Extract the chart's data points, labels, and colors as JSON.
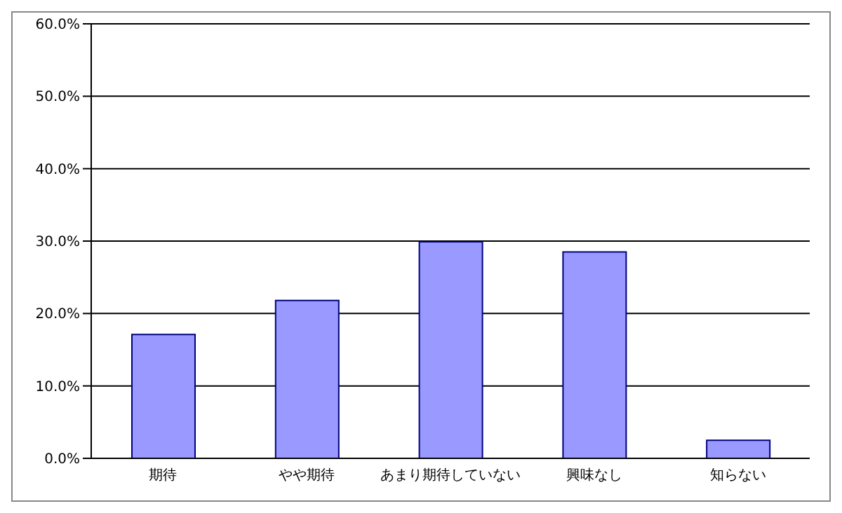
{
  "chart_data": {
    "type": "bar",
    "categories": [
      "期待",
      "やや期待",
      "あまり期待していない",
      "興味なし",
      "知らない"
    ],
    "values": [
      17.1,
      21.8,
      29.9,
      28.5,
      2.5
    ],
    "color": "#9999ff",
    "ylim": [
      0,
      60
    ],
    "yticks": [
      {
        "value": 0,
        "label": "0.0%"
      },
      {
        "value": 10,
        "label": "10.0%"
      },
      {
        "value": 20,
        "label": "20.0%"
      },
      {
        "value": 30,
        "label": "30.0%"
      },
      {
        "value": 40,
        "label": "40.0%"
      },
      {
        "value": 50,
        "label": "50.0%"
      },
      {
        "value": 60,
        "label": "60.0%"
      }
    ],
    "grid": "y",
    "legend": false
  }
}
